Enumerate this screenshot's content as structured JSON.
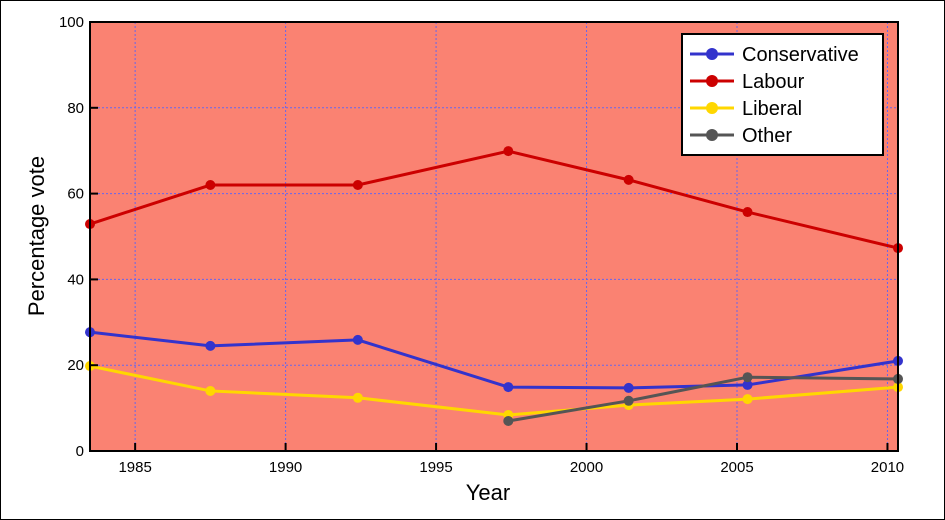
{
  "chart_data": {
    "type": "line",
    "title": "",
    "xlabel": "Year",
    "ylabel": "Percentage vote",
    "xlim": [
      1983.5,
      2010.35
    ],
    "ylim": [
      0,
      100
    ],
    "xticks": [
      1985,
      1990,
      1995,
      2000,
      2005,
      2010
    ],
    "yticks": [
      0,
      20,
      40,
      60,
      80,
      100
    ],
    "grid": true,
    "legend_position": "top-right",
    "background_color": "#fa8272",
    "series": [
      {
        "name": "Conservative",
        "color": "#3333cc",
        "x": [
          1983.5,
          1987.5,
          1992.4,
          1997.4,
          2001.4,
          2005.35,
          2010.35
        ],
        "values": [
          27.7,
          24.5,
          25.9,
          14.9,
          14.7,
          15.4,
          21.0
        ]
      },
      {
        "name": "Labour",
        "color": "#cc0000",
        "x": [
          1983.5,
          1987.5,
          1992.4,
          1997.4,
          2001.4,
          2005.35,
          2010.35
        ],
        "values": [
          52.9,
          62.0,
          62.0,
          69.9,
          63.2,
          55.7,
          47.3
        ]
      },
      {
        "name": "Liberal",
        "color": "#ffd700",
        "x": [
          1983.5,
          1987.5,
          1992.4,
          1997.4,
          2001.4,
          2005.35,
          2010.35
        ],
        "values": [
          19.8,
          14.0,
          12.4,
          8.4,
          10.7,
          12.1,
          14.9
        ]
      },
      {
        "name": "Other",
        "color": "#555555",
        "x": [
          1997.4,
          2001.4,
          2005.35,
          2010.35
        ],
        "values": [
          7.0,
          11.7,
          17.2,
          16.8
        ]
      }
    ]
  }
}
